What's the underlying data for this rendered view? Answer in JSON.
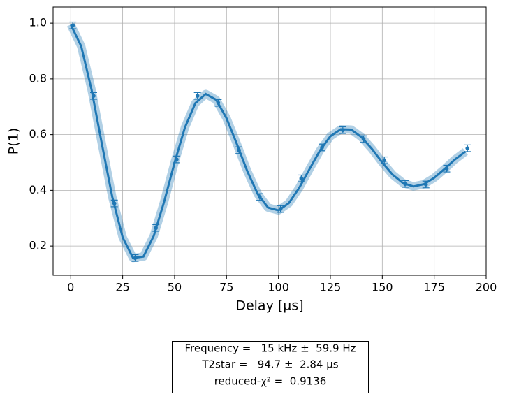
{
  "chart_data": {
    "type": "scatter",
    "x_label": "Delay [µs]",
    "y_label": "P(1)",
    "x": [
      1,
      11,
      21,
      31,
      41,
      51,
      61,
      71,
      81,
      91,
      101,
      111,
      121,
      131,
      141,
      151,
      161,
      171,
      181,
      191
    ],
    "values": [
      0.992,
      0.739,
      0.353,
      0.157,
      0.265,
      0.511,
      0.739,
      0.714,
      0.544,
      0.376,
      0.333,
      0.443,
      0.554,
      0.616,
      0.584,
      0.508,
      0.423,
      0.421,
      0.478,
      0.551
    ],
    "errors": [
      0.012,
      0.012,
      0.012,
      0.012,
      0.012,
      0.012,
      0.012,
      0.012,
      0.012,
      0.012,
      0.012,
      0.012,
      0.012,
      0.012,
      0.012,
      0.012,
      0.012,
      0.012,
      0.012,
      0.012
    ],
    "fit": {
      "x": [
        0,
        5,
        10,
        15,
        20,
        25,
        30,
        35,
        40,
        45,
        50,
        55,
        60,
        65,
        70,
        75,
        80,
        85,
        90,
        95,
        100,
        105,
        110,
        115,
        120,
        125,
        130,
        135,
        140,
        145,
        150,
        155,
        160,
        165,
        170,
        175,
        180,
        185,
        190
      ],
      "values": [
        0.995,
        0.918,
        0.762,
        0.566,
        0.376,
        0.231,
        0.157,
        0.162,
        0.237,
        0.36,
        0.5,
        0.626,
        0.713,
        0.746,
        0.725,
        0.659,
        0.566,
        0.469,
        0.387,
        0.338,
        0.328,
        0.354,
        0.409,
        0.477,
        0.543,
        0.594,
        0.619,
        0.618,
        0.591,
        0.549,
        0.5,
        0.456,
        0.426,
        0.414,
        0.422,
        0.445,
        0.477,
        0.511,
        0.539
      ]
    },
    "color": "#1f77b4",
    "xlim": [
      -8.5,
      200
    ],
    "xticks": [
      0,
      25,
      50,
      75,
      100,
      125,
      150,
      175,
      200
    ],
    "ylim": [
      0.095,
      1.058
    ],
    "yticks": [
      0.2,
      0.4,
      0.6,
      0.8,
      {
        "value": 1,
        "label": "1.0"
      }
    ],
    "grid": true,
    "annotations": [
      "Frequency =   15 kHz ±  59.9 Hz",
      "T2star =   94.7 ±  2.84 µs",
      "reduced-χ² =  0.9136"
    ]
  }
}
